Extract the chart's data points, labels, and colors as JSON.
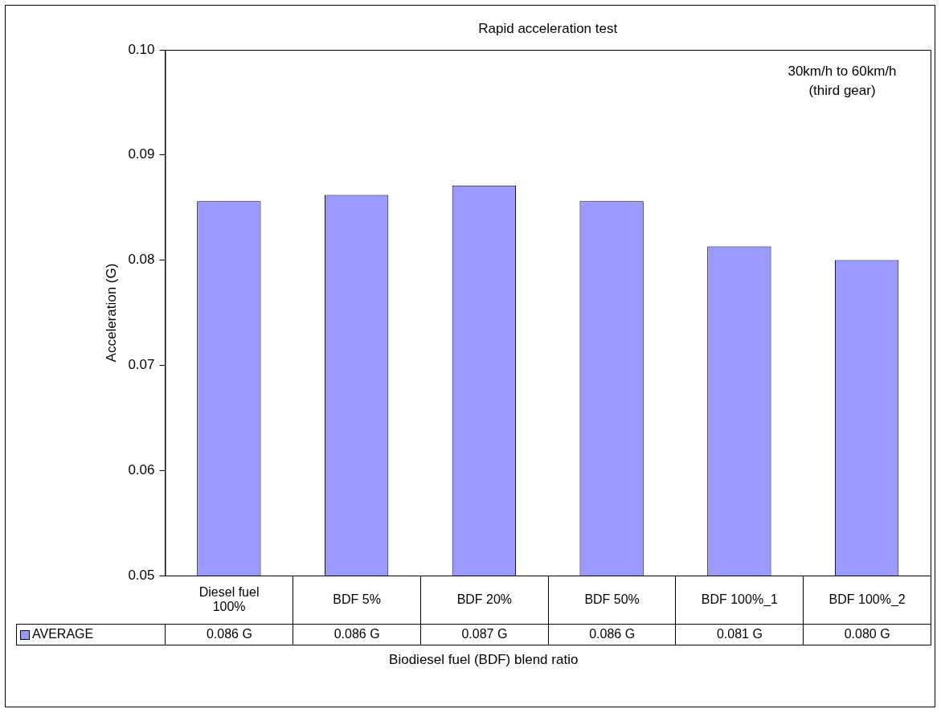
{
  "chart_data": {
    "type": "bar",
    "title": "Rapid acceleration test",
    "xlabel": "Biodiesel fuel (BDF) blend ratio",
    "ylabel": "Acceleration (G)",
    "categories": [
      "Diesel fuel 100%",
      "BDF 5%",
      "BDF 20%",
      "BDF 50%",
      "BDF 100%_1",
      "BDF 100%_2"
    ],
    "series": [
      {
        "name": "AVERAGE",
        "color": "#9999ff",
        "values": [
          0.0856,
          0.0862,
          0.0871,
          0.0856,
          0.0813,
          0.08
        ],
        "value_labels": [
          "0.086 G",
          "0.086 G",
          "0.087 G",
          "0.086 G",
          "0.081 G",
          "0.080 G"
        ]
      }
    ],
    "ylim": [
      0.05,
      0.1
    ],
    "yticks": [
      0.05,
      0.06,
      0.07,
      0.08,
      0.09,
      {
        "value": 0.1,
        "label": "0.10"
      }
    ],
    "annotations": [
      "30km/h to 60km/h\n(third gear)"
    ],
    "grid": false,
    "legend": "bottom"
  }
}
